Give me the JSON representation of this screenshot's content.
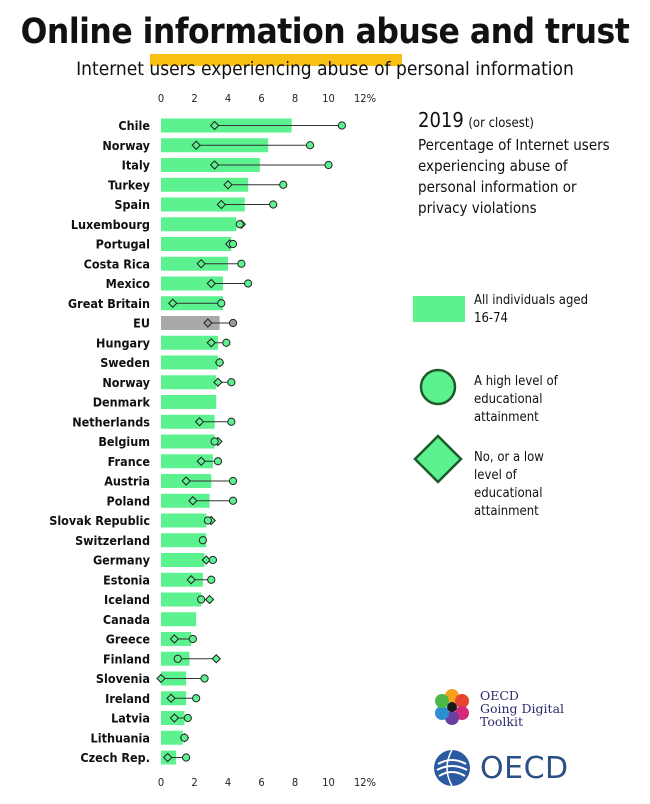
{
  "title": "Online information abuse and trust",
  "subtitle": "Internet users experiencing abuse of personal information",
  "info": {
    "year": "2019",
    "year_note": "(or closest)",
    "description": "Percentage of Internet users experiencing abuse of personal information or privacy violations"
  },
  "legend": {
    "bar": "All individuals aged 16-74",
    "circle": "A high level of educational attainment",
    "diamond": "No, or a low level of educational attainment"
  },
  "logos": {
    "going_digital": [
      "OECD",
      "Going Digital",
      "Toolkit"
    ],
    "oecd": "OECD"
  },
  "colors": {
    "bar": "#5cf28f",
    "eu_bar": "#a9a9a9",
    "marker_fill": "#5cf28f",
    "marker_stroke": "#1f5a2a",
    "eu_marker": "#9a9a9a",
    "title_highlight": "#f7c013"
  },
  "chart_data": {
    "type": "bar",
    "orientation": "horizontal",
    "x_ticks": [
      "0",
      "2",
      "4",
      "6",
      "8",
      "10",
      "12%"
    ],
    "xlim": [
      0,
      12
    ],
    "categories": [
      "Chile",
      "Norway",
      "Italy",
      "Turkey",
      "Spain",
      "Luxembourg",
      "Portugal",
      "Costa Rica",
      "Mexico",
      "Great Britain",
      "EU",
      "Hungary",
      "Sweden",
      "Norway",
      "Denmark",
      "Netherlands",
      "Belgium",
      "France",
      "Austria",
      "Poland",
      "Slovak Republic",
      "Switzerland",
      "Germany",
      "Estonia",
      "Iceland",
      "Canada",
      "Greece",
      "Finland",
      "Slovenia",
      "Ireland",
      "Latvia",
      "Lithuania",
      "Czech Rep."
    ],
    "highlight_category": "EU",
    "series": [
      {
        "name": "All individuals aged 16-74",
        "marker": "bar",
        "values": [
          7.8,
          6.4,
          5.9,
          5.2,
          5.0,
          4.5,
          4.2,
          4.0,
          3.7,
          3.7,
          3.5,
          3.4,
          3.4,
          3.3,
          3.3,
          3.2,
          3.2,
          3.1,
          3.0,
          2.9,
          2.7,
          2.7,
          2.6,
          2.5,
          2.4,
          2.1,
          1.8,
          1.7,
          1.5,
          1.5,
          1.4,
          1.3,
          0.9
        ]
      },
      {
        "name": "A high level of educational attainment",
        "marker": "circle",
        "values": [
          10.8,
          8.9,
          10.0,
          7.3,
          6.7,
          4.7,
          4.3,
          4.8,
          5.2,
          3.6,
          4.3,
          3.9,
          3.5,
          4.2,
          null,
          4.2,
          3.2,
          3.4,
          4.3,
          4.3,
          2.8,
          2.5,
          3.1,
          3.0,
          2.4,
          null,
          1.9,
          1.0,
          2.6,
          2.1,
          1.6,
          1.4,
          1.5
        ]
      },
      {
        "name": "No, or a low level of educational attainment",
        "marker": "diamond",
        "values": [
          3.2,
          2.1,
          3.2,
          4.0,
          3.6,
          4.8,
          4.1,
          2.4,
          3.0,
          0.7,
          2.8,
          3.0,
          3.5,
          3.4,
          null,
          2.3,
          3.4,
          2.4,
          1.5,
          1.9,
          3.0,
          null,
          2.7,
          1.8,
          2.9,
          null,
          0.8,
          3.3,
          0.0,
          0.6,
          0.8,
          1.4,
          0.4
        ]
      }
    ]
  }
}
